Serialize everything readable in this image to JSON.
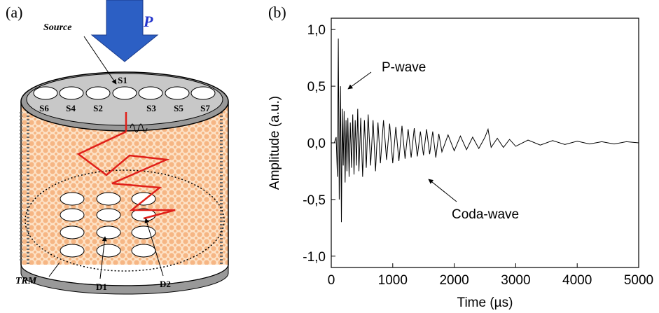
{
  "panel_labels": [
    "(a)",
    "(b)"
  ],
  "diagram": {
    "source": "Source",
    "pressure": "P",
    "trm": "TRM",
    "sources": [
      "S1",
      "S6",
      "S4",
      "S2",
      "S3",
      "S5",
      "S7"
    ],
    "detectors": [
      "D1",
      "D2"
    ]
  },
  "chart_data": {
    "type": "line",
    "xlabel": "Time (µs)",
    "ylabel": "Amplitude (a.u.)",
    "annotations": [
      "P-wave",
      "Coda-wave"
    ],
    "color": "#000000",
    "x": [
      0,
      50,
      80,
      100,
      115,
      130,
      150,
      165,
      180,
      195,
      210,
      225,
      240,
      255,
      270,
      290,
      310,
      330,
      350,
      370,
      390,
      410,
      430,
      450,
      480,
      510,
      540,
      570,
      600,
      640,
      680,
      720,
      760,
      800,
      850,
      900,
      950,
      1000,
      1050,
      1100,
      1150,
      1200,
      1250,
      1300,
      1350,
      1400,
      1450,
      1500,
      1550,
      1600,
      1650,
      1700,
      1750,
      1800,
      1900,
      2000,
      2100,
      2200,
      2300,
      2400,
      2500,
      2550,
      2600,
      2700,
      2800,
      2900,
      3000,
      3200,
      3400,
      3600,
      3800,
      4000,
      4200,
      4400,
      4600,
      4800,
      5000
    ],
    "values": [
      0,
      0,
      0.05,
      -0.3,
      0.92,
      -0.5,
      0.5,
      -0.7,
      0.3,
      -0.2,
      0.28,
      -0.35,
      0.2,
      -0.25,
      0.22,
      -0.3,
      0.18,
      -0.22,
      0.25,
      -0.28,
      0.2,
      -0.2,
      0.3,
      -0.25,
      0.22,
      -0.3,
      0.2,
      -0.22,
      0.25,
      -0.2,
      0.2,
      -0.25,
      0.18,
      -0.18,
      0.2,
      -0.15,
      0.17,
      -0.18,
      0.14,
      -0.16,
      0.15,
      -0.14,
      0.12,
      -0.13,
      0.13,
      -0.12,
      0.1,
      -0.11,
      0.12,
      -0.1,
      0.1,
      -0.13,
      0.08,
      -0.08,
      0.07,
      -0.07,
      0.06,
      -0.06,
      0.05,
      -0.05,
      0.05,
      0.12,
      -0.04,
      0.04,
      -0.04,
      0.03,
      -0.03,
      0.025,
      -0.02,
      0.02,
      -0.015,
      0.015,
      -0.01,
      0.01,
      -0.01,
      0.01,
      0
    ],
    "xlim": [
      0,
      5000
    ],
    "xticks": [
      0,
      1000,
      2000,
      3000,
      4000,
      5000
    ],
    "ylim": [
      -1.1,
      1.1
    ],
    "yticks": [
      {
        "value": -1,
        "label": "-1,0"
      },
      {
        "value": -0.5,
        "label": "-0,5"
      },
      {
        "value": 0,
        "label": "0,0"
      },
      {
        "value": 0.5,
        "label": "0,5"
      },
      {
        "value": 1,
        "label": "1,0"
      }
    ],
    "grid": false
  }
}
